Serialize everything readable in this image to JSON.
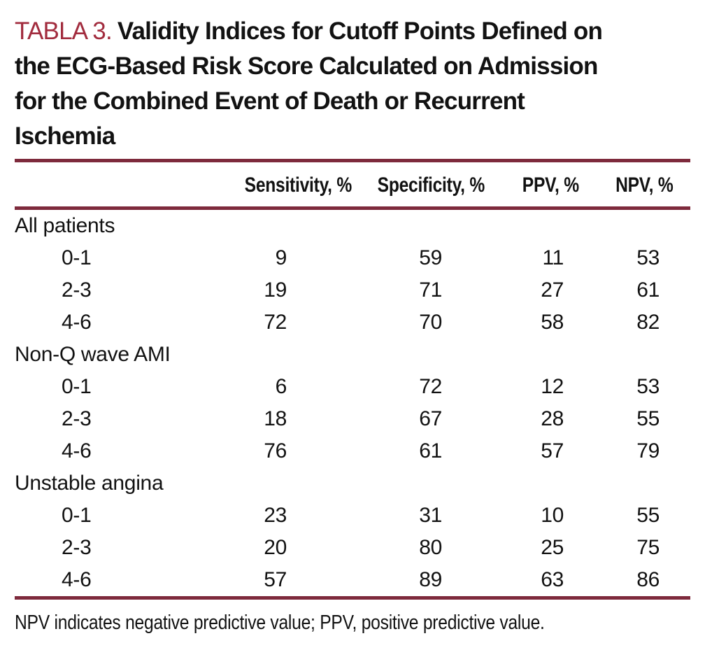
{
  "colors": {
    "title_accent": "#A22C3E",
    "rule": "#7E2A3C",
    "text": "#121212"
  },
  "title": {
    "label": "TABLA 3.",
    "lines": [
      "Validity Indices for Cutoff Points Defined on",
      "the ECG-Based Risk Score Calculated on Admission",
      "for the Combined Event of Death or Recurrent",
      "Ischemia"
    ]
  },
  "table": {
    "columns": [
      "",
      "Sensitivity, %",
      "Specificity, %",
      "PPV, %",
      "NPV, %"
    ],
    "groups": [
      {
        "label": "All patients",
        "rows": [
          {
            "label": "0-1",
            "values": [
              "9",
              "59",
              "11",
              "53"
            ]
          },
          {
            "label": "2-3",
            "values": [
              "19",
              "71",
              "27",
              "61"
            ]
          },
          {
            "label": "4-6",
            "values": [
              "72",
              "70",
              "58",
              "82"
            ]
          }
        ]
      },
      {
        "label": "Non-Q wave AMI",
        "rows": [
          {
            "label": "0-1",
            "values": [
              "6",
              "72",
              "12",
              "53"
            ]
          },
          {
            "label": "2-3",
            "values": [
              "18",
              "67",
              "28",
              "55"
            ]
          },
          {
            "label": "4-6",
            "values": [
              "76",
              "61",
              "57",
              "79"
            ]
          }
        ]
      },
      {
        "label": "Unstable angina",
        "rows": [
          {
            "label": "0-1",
            "values": [
              "23",
              "31",
              "10",
              "55"
            ]
          },
          {
            "label": "2-3",
            "values": [
              "20",
              "80",
              "25",
              "75"
            ]
          },
          {
            "label": "4-6",
            "values": [
              "57",
              "89",
              "63",
              "86"
            ]
          }
        ]
      }
    ]
  },
  "footnote": "NPV indicates negative predictive value; PPV, positive predictive value."
}
